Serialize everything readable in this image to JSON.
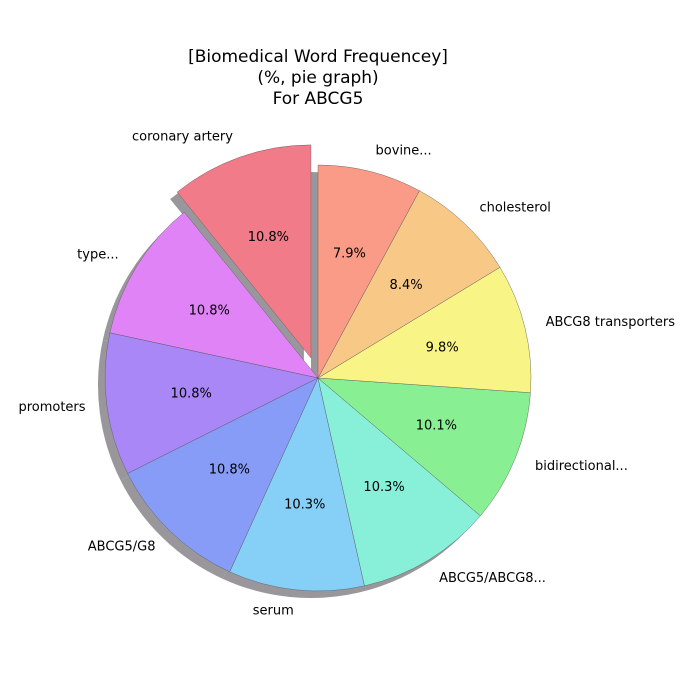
{
  "chart_data": {
    "type": "pie",
    "title": [
      "[Biomedical Word Frequencey]",
      "(%, pie graph)",
      "For ABCG5"
    ],
    "start_angle_deg": 90,
    "direction": "counterclockwise",
    "shadow": true,
    "slices": [
      {
        "label": "coronary artery",
        "value": 10.8,
        "pct_label": "10.8%",
        "color": "#f27b8a",
        "explode": true
      },
      {
        "label": "type...",
        "value": 10.8,
        "pct_label": "10.8%",
        "color": "#df83f6",
        "explode": false
      },
      {
        "label": "promoters",
        "value": 10.8,
        "pct_label": "10.8%",
        "color": "#a987f6",
        "explode": false
      },
      {
        "label": "ABCG5/G8",
        "value": 10.8,
        "pct_label": "10.8%",
        "color": "#879cf7",
        "explode": false
      },
      {
        "label": "serum",
        "value": 10.3,
        "pct_label": "10.3%",
        "color": "#86cff7",
        "explode": false
      },
      {
        "label": "ABCG5/ABCG8...",
        "value": 10.3,
        "pct_label": "10.3%",
        "color": "#88efd8",
        "explode": false
      },
      {
        "label": "bidirectional...",
        "value": 10.1,
        "pct_label": "10.1%",
        "color": "#88f093",
        "explode": false
      },
      {
        "label": "ABCG8 transporters",
        "value": 9.8,
        "pct_label": "9.8%",
        "color": "#f8f485",
        "explode": false
      },
      {
        "label": "cholesterol",
        "value": 8.4,
        "pct_label": "8.4%",
        "color": "#f8c886",
        "explode": false
      },
      {
        "label": "bovine...",
        "value": 7.9,
        "pct_label": "7.9%",
        "color": "#f99b86",
        "explode": false
      }
    ]
  }
}
